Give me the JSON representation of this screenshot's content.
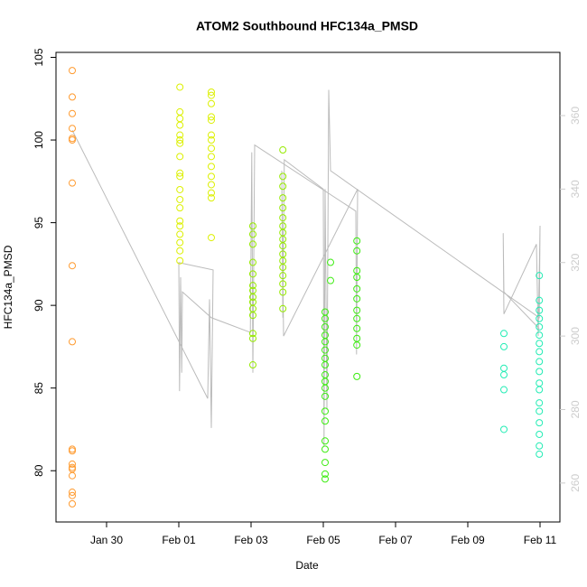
{
  "chart_data": {
    "type": "scatter",
    "title": "ATOM2 Southbound HFC134a_PMSD",
    "x_label": "Date",
    "y_label": "HFC134a_PMSD",
    "xlim": [
      28.6,
      42.55
    ],
    "ylim": [
      76.9,
      105.3
    ],
    "y2lim": [
      249.4,
      377.2
    ],
    "xticks": [
      {
        "value": 30,
        "label": "Jan 30"
      },
      {
        "value": 32,
        "label": "Feb 01"
      },
      {
        "value": 34,
        "label": "Feb 03"
      },
      {
        "value": 36,
        "label": "Feb 05"
      },
      {
        "value": 38,
        "label": "Feb 07"
      },
      {
        "value": 40,
        "label": "Feb 09"
      },
      {
        "value": 42,
        "label": "Feb 11"
      }
    ],
    "yticks": [
      80,
      85,
      90,
      95,
      100,
      105
    ],
    "y2ticks": [
      260,
      280,
      300,
      320,
      340,
      360
    ],
    "y2color": "#cccccc",
    "series": [
      {
        "type": "line",
        "axis": "y2",
        "color": "#bbbbbb",
        "x": [
          29.05,
          32.8,
          32.85,
          32.9,
          32.95,
          32.0,
          32.02,
          32.05,
          32.08,
          32.1,
          32.9,
          33.98,
          34.02,
          34.05,
          34.1,
          36.9,
          36.92,
          36.95,
          34.9,
          34.85,
          34.88,
          34.92,
          36.0,
          36.02,
          36.05,
          36.1,
          36.15,
          36.2,
          41.98,
          42.0,
          41.95,
          41.9,
          41.0,
          40.98,
          41.0,
          41.98
        ],
        "values": [
          356,
          283,
          310,
          275,
          318,
          320,
          285,
          316,
          290,
          312,
          305,
          301,
          350,
          290,
          352,
          334,
          295,
          340,
          300,
          345,
          305,
          348,
          340,
          270,
          340,
          280,
          367,
          345,
          305,
          330,
          300,
          325,
          306,
          328,
          312,
          302
        ]
      },
      {
        "type": "scatter",
        "color": "#ff9a2e",
        "x": [
          29.05,
          29.05,
          29.05,
          29.05,
          29.05,
          29.05,
          29.05,
          29.05,
          29.05,
          29.05,
          29.05,
          29.05,
          29.05,
          29.05,
          29.05,
          29.05,
          29.05,
          29.05
        ],
        "values": [
          104.2,
          102.6,
          101.6,
          100.7,
          100.1,
          100.0,
          97.4,
          92.4,
          87.8,
          81.3,
          81.2,
          80.4,
          80.2,
          80.1,
          79.7,
          78.7,
          78.5,
          78.0
        ]
      },
      {
        "type": "scatter",
        "color": "#dcf000",
        "x": [
          32.03,
          32.03,
          32.03,
          32.03,
          32.03,
          32.03,
          32.03,
          32.03,
          32.03,
          32.03,
          32.03,
          32.03,
          32.03,
          32.03,
          32.03,
          32.03,
          32.03,
          32.03,
          32.03,
          32.9,
          32.9,
          32.9,
          32.9,
          32.9,
          32.9,
          32.9,
          32.9,
          32.9,
          32.9,
          32.9,
          32.9,
          32.9,
          32.9,
          32.9
        ],
        "values": [
          103.2,
          101.7,
          101.3,
          100.9,
          100.3,
          100.0,
          99.8,
          99.0,
          98.0,
          97.8,
          97.0,
          96.4,
          95.9,
          95.1,
          94.8,
          94.3,
          93.8,
          93.3,
          92.7,
          102.9,
          102.7,
          102.2,
          101.4,
          101.2,
          100.3,
          100.0,
          99.5,
          99.0,
          98.4,
          97.8,
          97.3,
          96.8,
          96.5,
          94.1
        ]
      },
      {
        "type": "scatter",
        "color": "#96ea00",
        "x": [
          34.05,
          34.05,
          34.05,
          34.05,
          34.05,
          34.05,
          34.05,
          34.05,
          34.05,
          34.05,
          34.05,
          34.05,
          34.05,
          34.05,
          34.88,
          34.88,
          34.88,
          34.88,
          34.88,
          34.88,
          34.88,
          34.88,
          34.88,
          34.88,
          34.88,
          34.88,
          34.88,
          34.88,
          34.88,
          34.88,
          34.88
        ],
        "values": [
          94.8,
          94.3,
          93.7,
          92.6,
          91.9,
          91.2,
          90.9,
          90.5,
          90.2,
          89.8,
          89.4,
          88.3,
          88.0,
          86.4,
          99.4,
          97.8,
          97.2,
          96.5,
          95.9,
          95.3,
          94.8,
          94.4,
          94.0,
          93.6,
          93.1,
          92.7,
          92.3,
          91.8,
          91.3,
          90.8,
          89.8
        ]
      },
      {
        "type": "scatter",
        "color": "#3cec10",
        "x": [
          36.05,
          36.05,
          36.05,
          36.05,
          36.05,
          36.05,
          36.05,
          36.05,
          36.05,
          36.05,
          36.05,
          36.05,
          36.05,
          36.05,
          36.05,
          36.05,
          36.05,
          36.05,
          36.05,
          36.2,
          36.2,
          36.93,
          36.93,
          36.93,
          36.93,
          36.93,
          36.93,
          36.93,
          36.93,
          36.93,
          36.93,
          36.93,
          36.93
        ],
        "values": [
          89.6,
          89.2,
          88.7,
          88.2,
          87.8,
          87.3,
          86.8,
          86.4,
          85.8,
          85.4,
          85.0,
          84.5,
          83.6,
          83.0,
          81.8,
          81.3,
          80.5,
          79.8,
          79.5,
          92.6,
          91.5,
          93.9,
          93.3,
          92.1,
          91.7,
          91.0,
          90.4,
          89.7,
          89.2,
          88.6,
          88.0,
          87.6,
          85.7
        ]
      },
      {
        "type": "scatter",
        "color": "#22ecb4",
        "x": [
          41.0,
          41.0,
          41.0,
          41.0,
          41.0,
          41.0,
          41.98,
          41.98,
          41.98,
          41.98,
          41.98,
          41.98,
          41.98,
          41.98,
          41.98,
          41.98,
          41.98,
          41.98,
          41.98,
          41.98,
          41.98,
          41.98,
          41.98,
          41.98
        ],
        "values": [
          88.3,
          87.5,
          86.2,
          85.8,
          84.9,
          82.5,
          91.8,
          90.3,
          89.7,
          89.2,
          88.7,
          88.2,
          87.7,
          87.2,
          86.6,
          86.0,
          85.3,
          84.9,
          84.1,
          83.6,
          82.9,
          82.2,
          81.5,
          81.0
        ]
      }
    ]
  }
}
